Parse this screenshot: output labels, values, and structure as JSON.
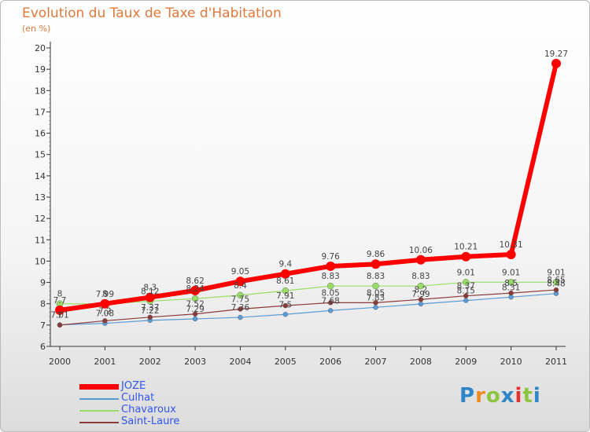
{
  "title": "Evolution du Taux de Taxe d'Habitation",
  "subtitle": "(en %)",
  "logo": {
    "text": "Proxiti",
    "colors": [
      "#2e86c8",
      "#f08c1e",
      "#8cc63f",
      "#2e86c8",
      "#e6302e",
      "#8cc63f",
      "#2e86c8"
    ]
  },
  "chart_data": {
    "type": "line",
    "x": [
      "2000",
      "2001",
      "2002",
      "2003",
      "2004",
      "2005",
      "2006",
      "2007",
      "2008",
      "2009",
      "2010",
      "2011"
    ],
    "ylim": [
      6,
      20
    ],
    "yticks": [
      "6",
      "7",
      "8",
      "9",
      "10",
      "11",
      "12",
      "13",
      "14",
      "15",
      "16",
      "17",
      "18",
      "19",
      "20"
    ],
    "grid": false,
    "legend_position": "bottom-left",
    "series": [
      {
        "name": "JOZE",
        "color": "#ff0000",
        "values": [
          7.7,
          8.0,
          8.3,
          8.62,
          9.05,
          9.4,
          9.76,
          9.86,
          10.06,
          10.21,
          10.31,
          19.27
        ],
        "labels": [
          "7.7",
          "8",
          "8.3",
          "8.62",
          "9.05",
          "9.4",
          "9.76",
          "9.86",
          "10.06",
          "10.21",
          "10.31",
          "19.27"
        ]
      },
      {
        "name": "Culhat",
        "color": "#5b9bd5",
        "values": [
          7.01,
          7.08,
          7.22,
          7.29,
          7.36,
          7.5,
          7.68,
          7.83,
          7.99,
          8.15,
          8.31,
          8.48
        ],
        "labels": [
          "7.01",
          "7.08",
          "7.22",
          "7.29",
          "7.36",
          "7.5",
          "7.68",
          "7.83",
          "7.99",
          "8.15",
          "8.31",
          "8.48"
        ]
      },
      {
        "name": "Chavaroux",
        "color": "#99dd66",
        "values": [
          8.0,
          7.99,
          8.12,
          8.24,
          8.4,
          8.61,
          8.83,
          8.83,
          8.83,
          9.01,
          9.01,
          9.01
        ],
        "labels": [
          "8",
          "7.99",
          "8.12",
          "8.24",
          "8.4",
          "8.61",
          "8.83",
          "8.83",
          "8.83",
          "9.01",
          "9.01",
          "9.01"
        ]
      },
      {
        "name": "Saint-Laure",
        "color": "#8b3a3a",
        "values": [
          7.0,
          7.2,
          7.37,
          7.52,
          7.75,
          7.91,
          8.05,
          8.05,
          8.2,
          8.37,
          8.5,
          8.65
        ],
        "labels": [
          "7",
          "7.2",
          "7.37",
          "7.52",
          "7.75",
          "7.91",
          "8.05",
          "8.05",
          "8.2",
          "8.37",
          "8.5",
          "8.65"
        ]
      }
    ]
  }
}
